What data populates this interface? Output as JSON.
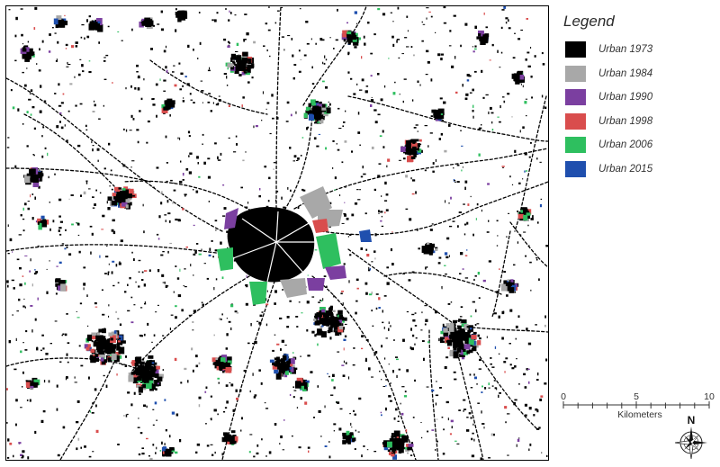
{
  "legend": {
    "title": "Legend",
    "items": [
      {
        "label": "Urban 1973",
        "color": "#000000"
      },
      {
        "label": "Urban 1984",
        "color": "#a8a8a8"
      },
      {
        "label": "Urban 1990",
        "color": "#7b3fa0"
      },
      {
        "label": "Urban 1998",
        "color": "#d94d4d"
      },
      {
        "label": "Urban 2006",
        "color": "#2ebf5f"
      },
      {
        "label": "Urban 2015",
        "color": "#1f4fae"
      }
    ]
  },
  "scale": {
    "ticks": [
      "0",
      "5",
      "10"
    ],
    "unit": "Kilometers"
  },
  "north": {
    "label": "N"
  }
}
